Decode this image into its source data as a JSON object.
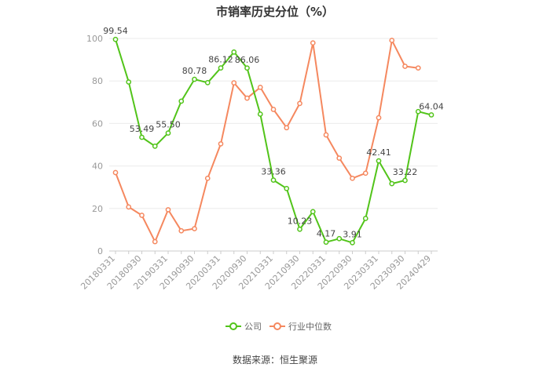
{
  "chart_data": {
    "type": "line",
    "title": "市销率历史分位（%）",
    "source": "数据来源：恒生聚源",
    "ylim": [
      0,
      100
    ],
    "yticks": [
      0,
      20,
      40,
      60,
      80,
      100
    ],
    "x": [
      "20180331",
      "20180630",
      "20180930",
      "20181231",
      "20190331",
      "20190630",
      "20190930",
      "20191231",
      "20200331",
      "20200630",
      "20200930",
      "20201231",
      "20210331",
      "20210630",
      "20210930",
      "20211231",
      "20220331",
      "20220630",
      "20220930",
      "20221231",
      "20230331",
      "20230630",
      "20230930",
      "20231231",
      "20240429"
    ],
    "xticks": [
      "20180331",
      "20180930",
      "20190331",
      "20190930",
      "20200331",
      "20200930",
      "20210331",
      "20210930",
      "20220331",
      "20220930",
      "20230331",
      "20230930",
      "20240429"
    ],
    "series": [
      {
        "name": "公司",
        "color": "#52c41a",
        "values": [
          99.54,
          79.5,
          53.49,
          49.3,
          55.5,
          70.5,
          80.78,
          79.2,
          86.12,
          93.6,
          86.06,
          64.4,
          33.36,
          29.4,
          10.23,
          18.5,
          4.17,
          5.8,
          3.91,
          15.3,
          42.41,
          31.7,
          33.22,
          65.6,
          64.04
        ],
        "labels": {
          "0": "99.54",
          "2": "53.49",
          "4": "55.50",
          "6": "80.78",
          "8": "86.12",
          "10": "86.06",
          "12": "33.36",
          "14": "10.23",
          "16": "4.17",
          "18": "3.91",
          "20": "42.41",
          "22": "33.22",
          "24": "64.04"
        }
      },
      {
        "name": "行业中位数",
        "color": "#f5885f",
        "values": [
          36.9,
          20.7,
          16.8,
          4.4,
          19.4,
          9.5,
          10.5,
          34.2,
          50.4,
          79.1,
          71.9,
          77.0,
          66.6,
          58.0,
          69.4,
          97.9,
          54.6,
          43.7,
          34.2,
          36.6,
          62.7,
          99.1,
          86.9,
          86.1,
          null
        ]
      }
    ],
    "legend": "bottom-center",
    "grid": true
  }
}
